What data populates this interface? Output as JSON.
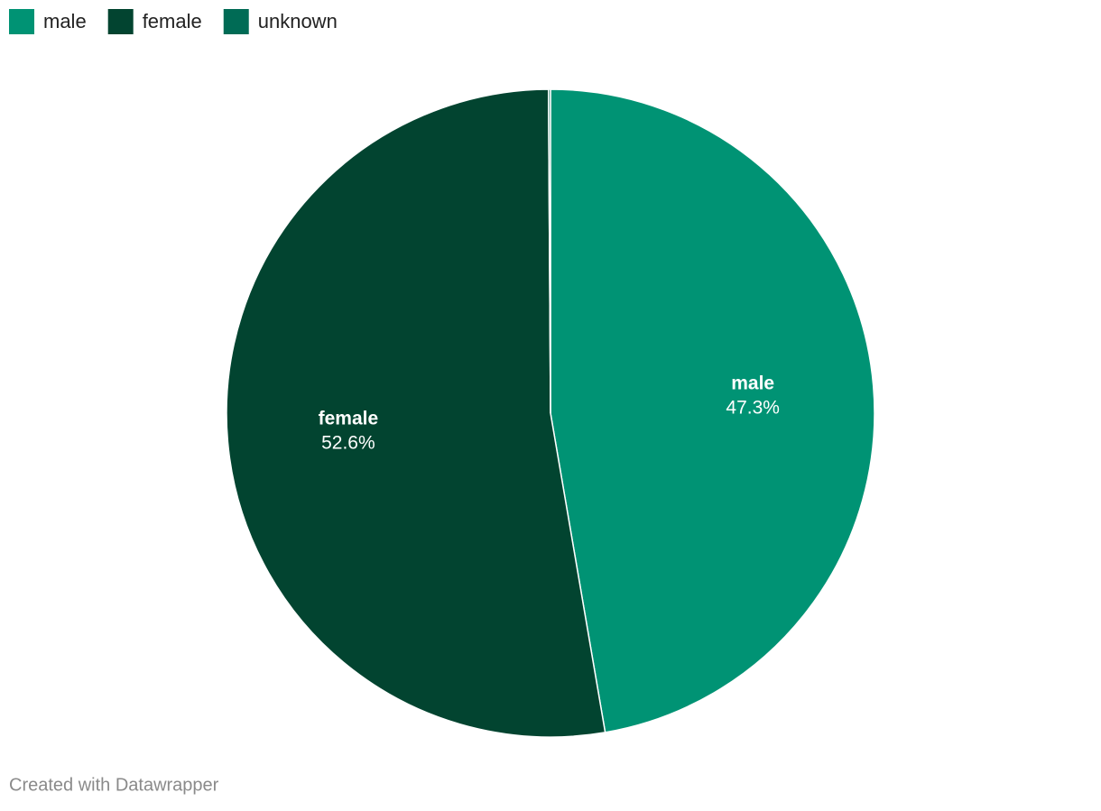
{
  "chart_data": {
    "type": "pie",
    "categories": [
      "male",
      "female",
      "unknown"
    ],
    "values": [
      47.3,
      52.6,
      0.1
    ],
    "value_labels": [
      "47.3%",
      "52.6%",
      null
    ],
    "colors": [
      "#009374",
      "#024430",
      "#006b55"
    ],
    "legend": "top-left",
    "footer": "Created with Datawrapper"
  }
}
